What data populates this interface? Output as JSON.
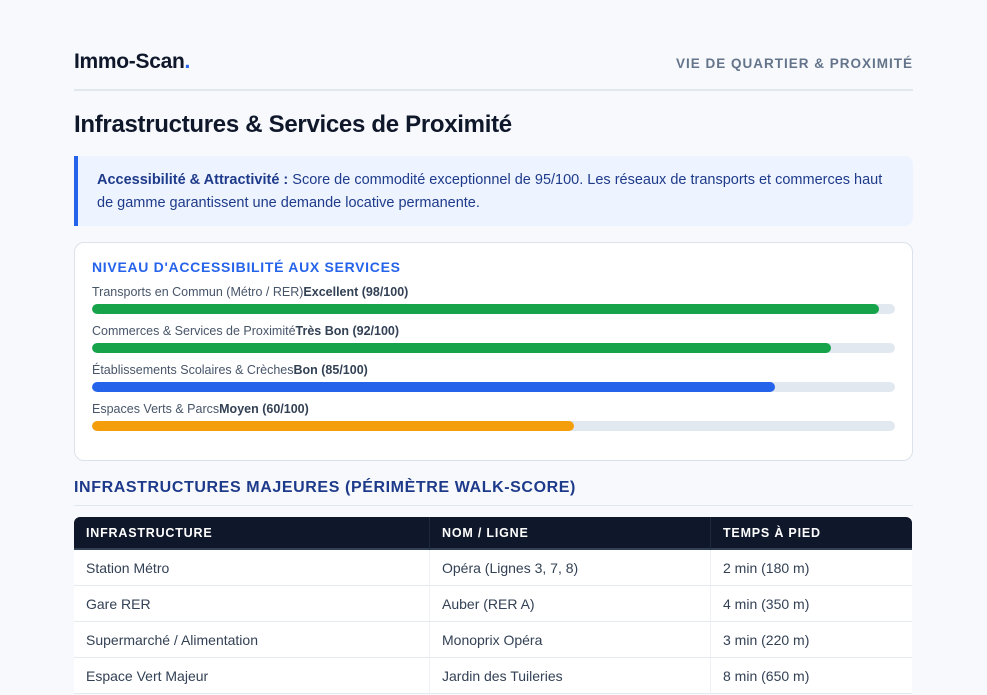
{
  "header": {
    "logo_text": "Immo-Scan",
    "logo_dot": ".",
    "tag": "VIE DE QUARTIER & PROXIMITÉ"
  },
  "page_title": "Infrastructures & Services de Proximité",
  "callout": {
    "strong": "Accessibilité & Attractivité :",
    "text": " Score de commodité exceptionnel de 95/100. Les réseaux de transports et commerces haut de gamme garantissent une demande locative permanente."
  },
  "scores": {
    "title": "NIVEAU D'ACCESSIBILITÉ AUX SERVICES",
    "items": [
      {
        "label": "Transports en Commun (Métro / RER)",
        "value": "Excellent (98/100)",
        "percent": 98,
        "color": "#16a34a"
      },
      {
        "label": "Commerces & Services de Proximité",
        "value": "Très Bon (92/100)",
        "percent": 92,
        "color": "#16a34a"
      },
      {
        "label": "Établissements Scolaires & Crèches",
        "value": "Bon (85/100)",
        "percent": 85,
        "color": "#2563eb"
      },
      {
        "label": "Espaces Verts & Parcs",
        "value": "Moyen (60/100)",
        "percent": 60,
        "color": "#f59e0b"
      }
    ]
  },
  "infra": {
    "title": "INFRASTRUCTURES MAJEURES (PÉRIMÈTRE WALK-SCORE)",
    "columns": [
      "INFRASTRUCTURE",
      "NOM / LIGNE",
      "TEMPS À PIED"
    ],
    "rows": [
      [
        "Station Métro",
        "Opéra (Lignes 3, 7, 8)",
        "2 min (180 m)"
      ],
      [
        "Gare RER",
        "Auber (RER A)",
        "4 min (350 m)"
      ],
      [
        "Supermarché / Alimentation",
        "Monoprix Opéra",
        "3 min (220 m)"
      ],
      [
        "Espace Vert Majeur",
        "Jardin des Tuileries",
        "8 min (650 m)"
      ]
    ]
  }
}
